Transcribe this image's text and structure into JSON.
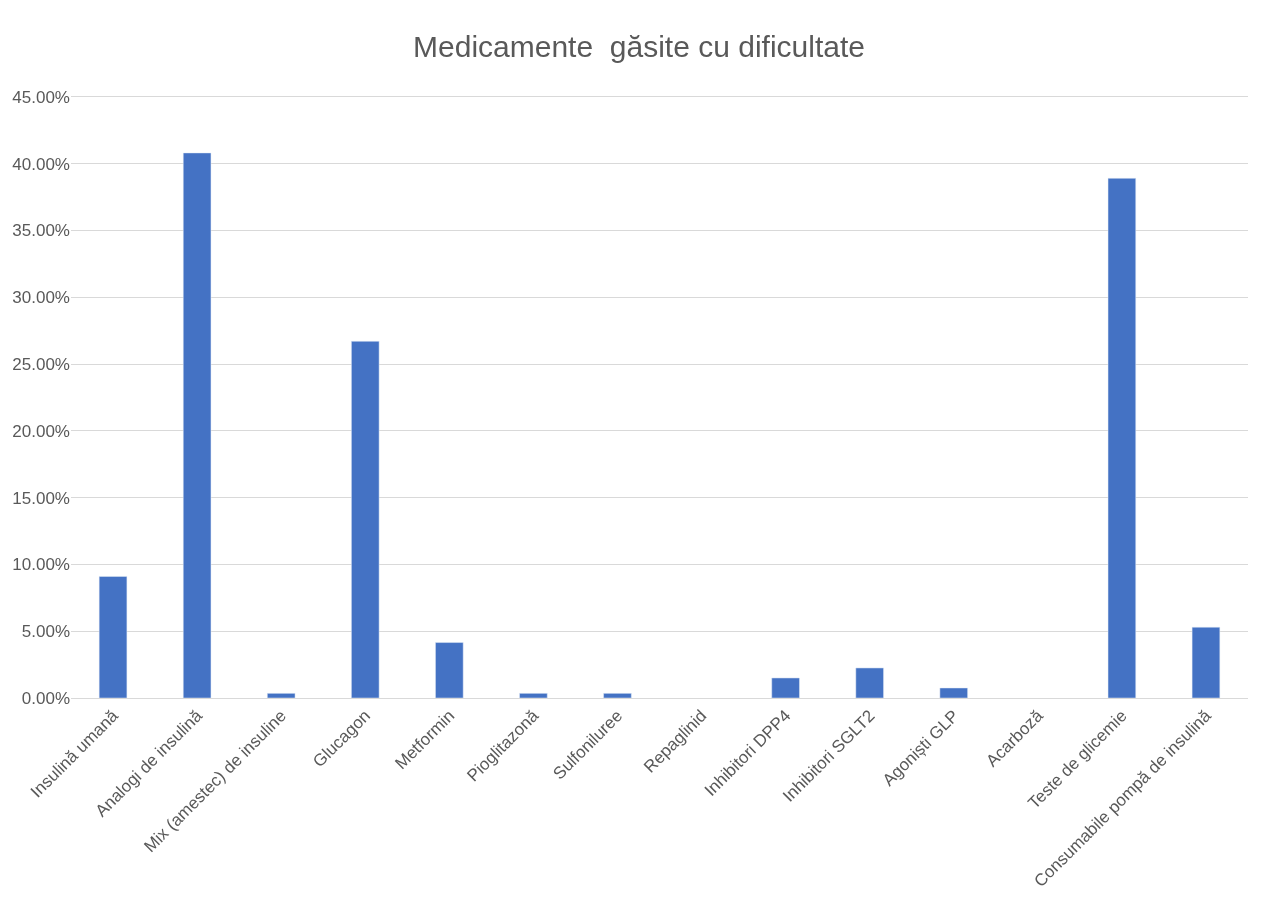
{
  "chart_data": {
    "type": "bar",
    "title": "Medicamente  găsite cu dificultate",
    "categories": [
      "Insulină umană",
      "Analogi de insulină",
      "Mix (amestec) de insuline",
      "Glucagon",
      "Metformin",
      "Pioglitazonă",
      "Sulfoniluree",
      "Repaglinid",
      "Inhibitori DPP4",
      "Inhibitori SGLT2",
      "Agoniști GLP",
      "Acarboză",
      "Teste de glicemie",
      "Consumabile pompă de insulină"
    ],
    "values": [
      9.1,
      40.8,
      0.35,
      26.7,
      4.15,
      0.35,
      0.35,
      null,
      1.5,
      2.25,
      0.75,
      null,
      38.9,
      5.3
    ],
    "color": "#4472c4",
    "ylim": [
      0,
      45
    ],
    "yticks": [
      {
        "value": 0,
        "label": "0.00%"
      },
      {
        "value": 5,
        "label": "5.00%"
      },
      {
        "value": 10,
        "label": "10.00%"
      },
      {
        "value": 15,
        "label": "15.00%"
      },
      {
        "value": 20,
        "label": "20.00%"
      },
      {
        "value": 25,
        "label": "25.00%"
      },
      {
        "value": 30,
        "label": "30.00%"
      },
      {
        "value": 35,
        "label": "35.00%"
      },
      {
        "value": 40,
        "label": "40.00%"
      },
      {
        "value": 45,
        "label": "45.00%"
      }
    ],
    "grid": "y"
  }
}
